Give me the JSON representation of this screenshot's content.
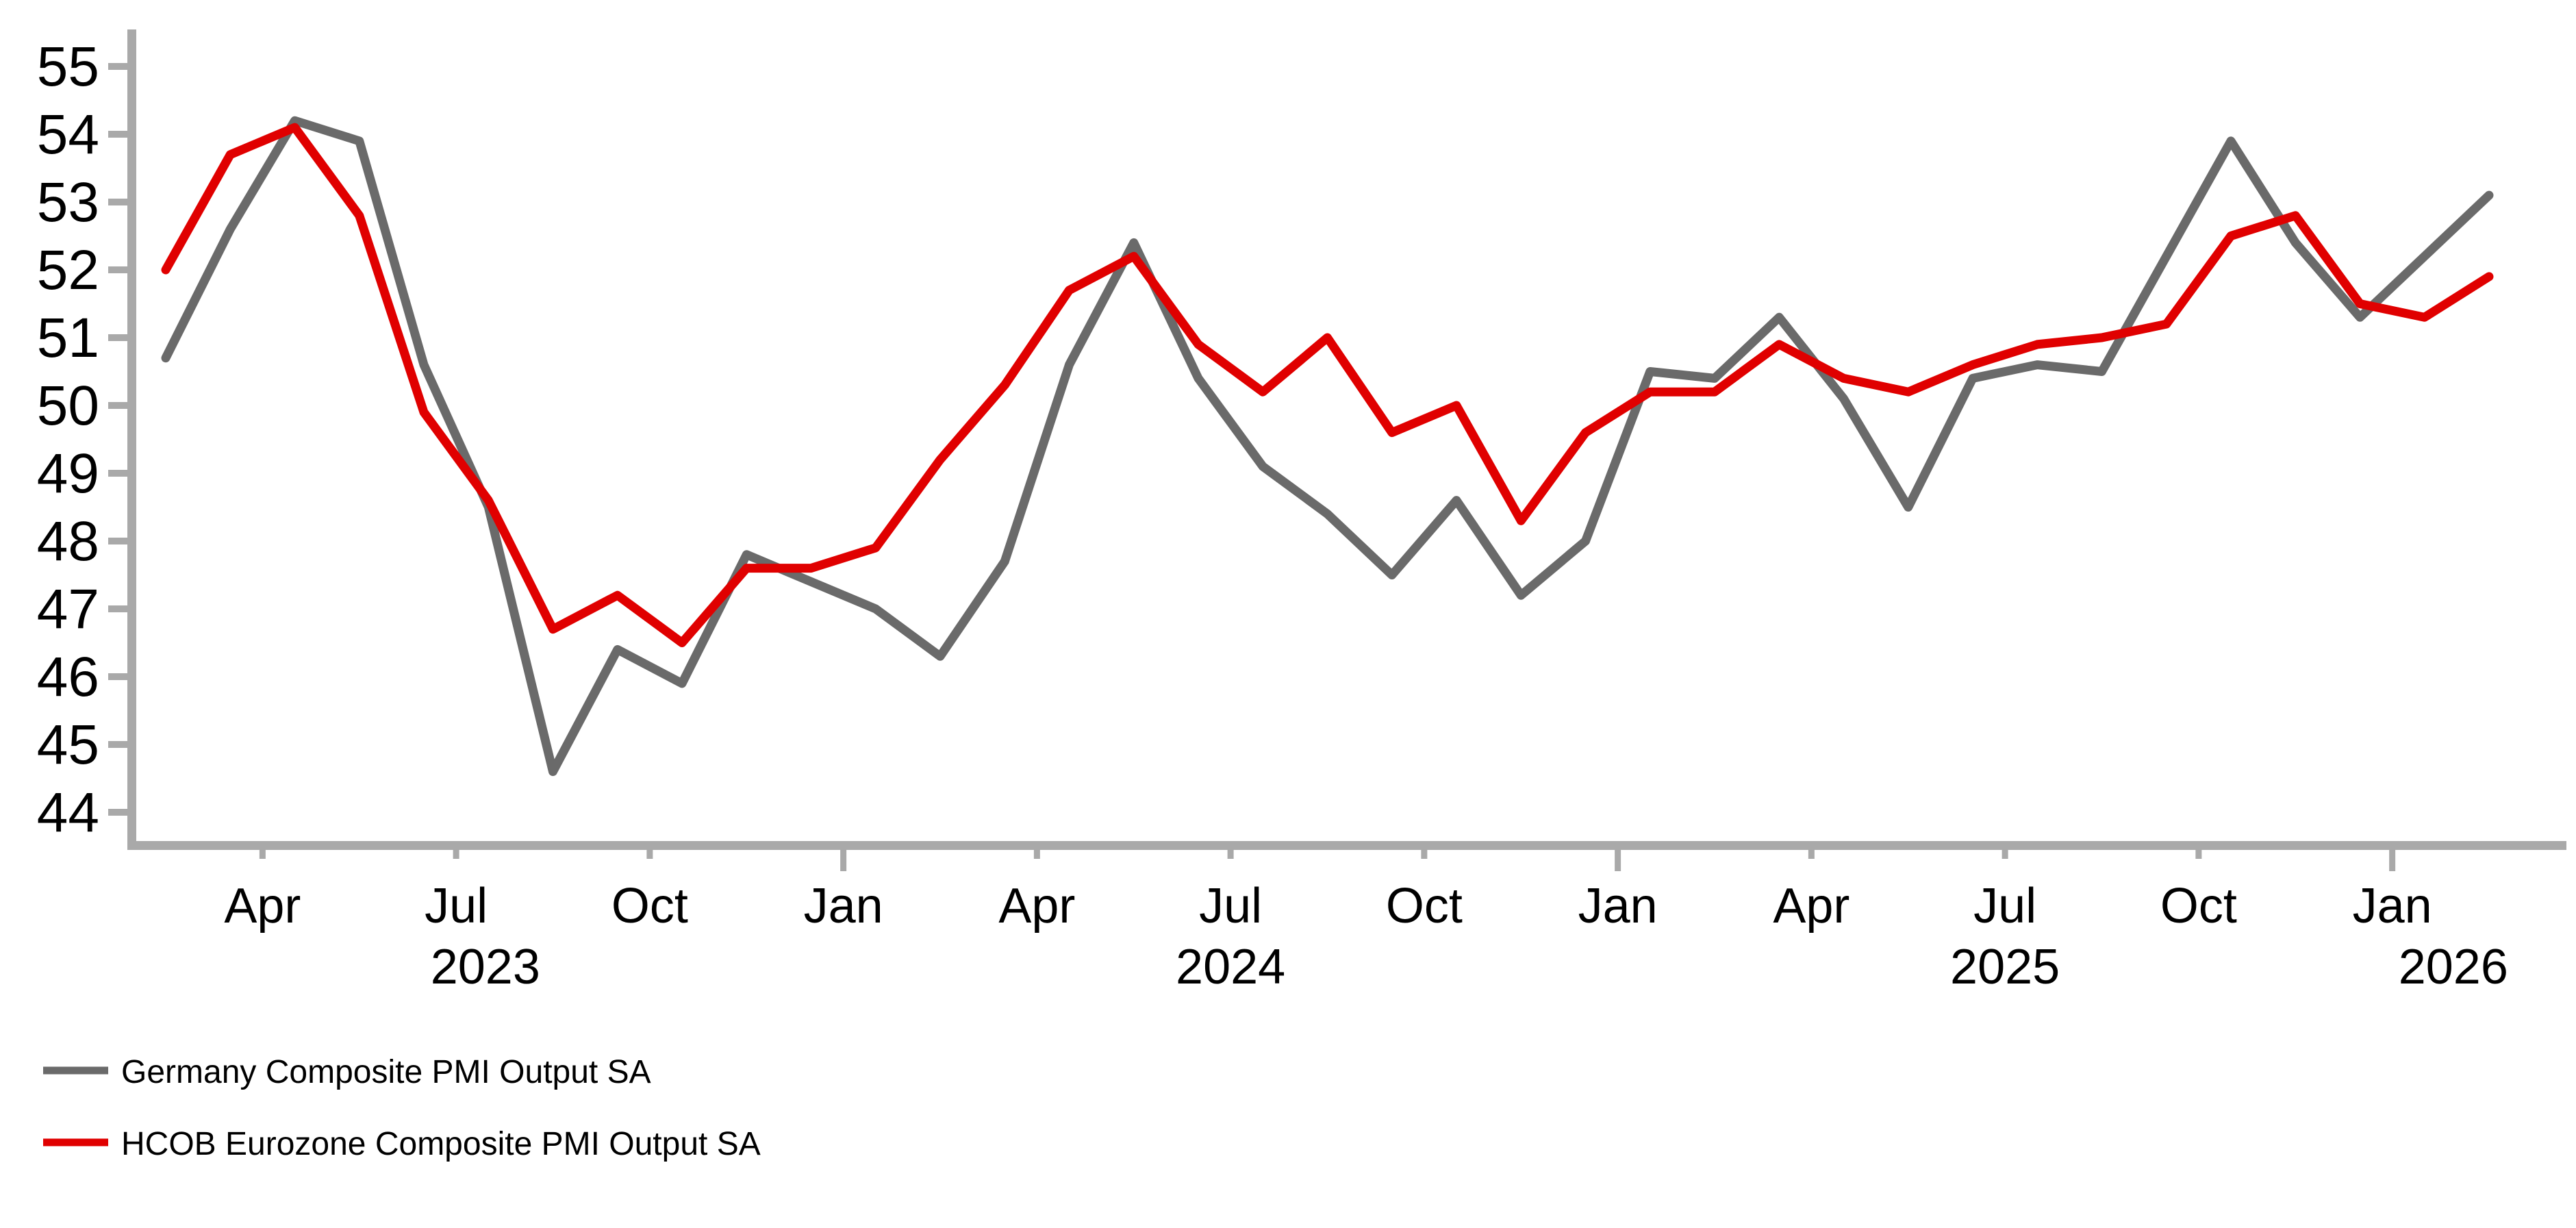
{
  "chart_data": {
    "type": "line",
    "title": "",
    "xlabel": "",
    "ylabel": "",
    "x_unit": "month",
    "x": [
      "2023-02",
      "2023-03",
      "2023-04",
      "2023-05",
      "2023-06",
      "2023-07",
      "2023-08",
      "2023-09",
      "2023-10",
      "2023-11",
      "2023-12",
      "2024-01",
      "2024-02",
      "2024-03",
      "2024-04",
      "2024-05",
      "2024-06",
      "2024-07",
      "2024-08",
      "2024-09",
      "2024-10",
      "2024-11",
      "2024-12",
      "2025-01",
      "2025-02",
      "2025-03",
      "2025-04",
      "2025-05",
      "2025-06",
      "2025-07",
      "2025-08",
      "2025-09",
      "2025-10",
      "2025-11",
      "2025-12",
      "2026-01",
      "2026-02"
    ],
    "series": [
      {
        "name": "Germany Composite PMI Output SA",
        "color": "#6a6a6a",
        "values": [
          50.7,
          52.6,
          54.2,
          53.9,
          50.6,
          48.5,
          44.6,
          46.4,
          45.9,
          47.8,
          47.4,
          47.0,
          46.3,
          47.7,
          50.6,
          52.4,
          50.4,
          49.1,
          48.4,
          47.5,
          48.6,
          47.2,
          48.0,
          50.5,
          50.4,
          51.3,
          50.1,
          48.5,
          50.4,
          50.6,
          50.5,
          52.2,
          53.9,
          52.4,
          51.3,
          52.2,
          53.1
        ]
      },
      {
        "name": "HCOB Eurozone Composite PMI Output SA",
        "color": "#e00000",
        "values": [
          52.0,
          53.7,
          54.1,
          52.8,
          49.9,
          48.6,
          46.7,
          47.2,
          46.5,
          47.6,
          47.6,
          47.9,
          49.2,
          50.3,
          51.7,
          52.2,
          50.9,
          50.2,
          51.0,
          49.6,
          50.0,
          48.3,
          49.6,
          50.2,
          50.2,
          50.9,
          50.4,
          50.2,
          50.6,
          50.9,
          51.0,
          51.2,
          52.5,
          52.8,
          51.5,
          51.3,
          51.9
        ]
      }
    ],
    "ylim": [
      44,
      55
    ],
    "y_tick_step": 1,
    "y_tick_labels": [
      "44",
      "45",
      "46",
      "47",
      "48",
      "49",
      "50",
      "51",
      "52",
      "53",
      "54",
      "55"
    ],
    "x_ticks": [
      {
        "date": "2023-04",
        "label": "Apr",
        "major": false
      },
      {
        "date": "2023-07",
        "label": "Jul",
        "major": false
      },
      {
        "date": "2023-10",
        "label": "Oct",
        "major": false
      },
      {
        "date": "2024-01",
        "label": "Jan",
        "major": true
      },
      {
        "date": "2024-04",
        "label": "Apr",
        "major": false
      },
      {
        "date": "2024-07",
        "label": "Jul",
        "major": false
      },
      {
        "date": "2024-10",
        "label": "Oct",
        "major": false
      },
      {
        "date": "2025-01",
        "label": "Jan",
        "major": true
      },
      {
        "date": "2025-04",
        "label": "Apr",
        "major": false
      },
      {
        "date": "2025-07",
        "label": "Jul",
        "major": false
      },
      {
        "date": "2025-10",
        "label": "Oct",
        "major": false
      },
      {
        "date": "2026-01",
        "label": "Jan",
        "major": true
      }
    ],
    "year_labels": [
      "2023",
      "2024",
      "2025",
      "2026"
    ],
    "legend_position": "bottom-left",
    "grid": false,
    "axis_color": "#a9a9a9",
    "text_color": "#000000"
  }
}
